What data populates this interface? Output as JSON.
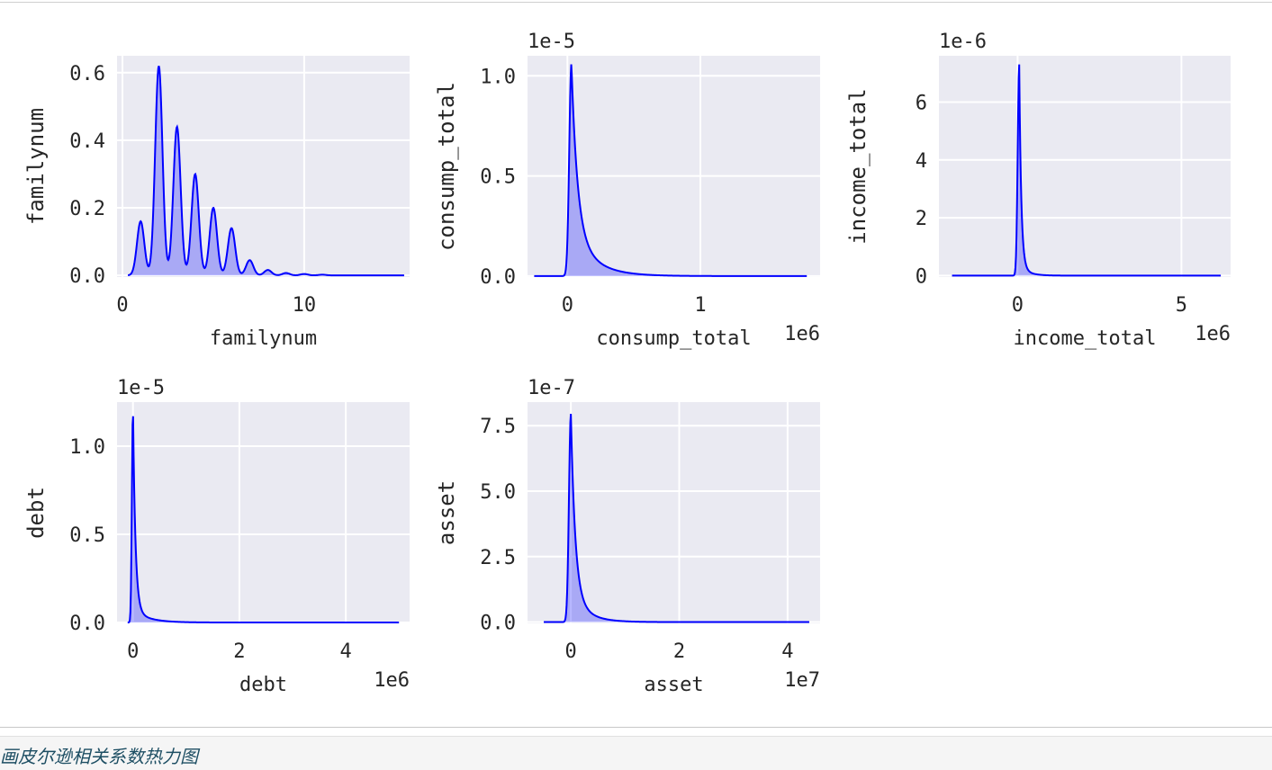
{
  "caption": "画皮尔逊相关系数热力图",
  "colors": {
    "panel_bg": "#eaeaf2",
    "grid": "#ffffff",
    "line": "#0000ff",
    "fill": "rgba(0,0,255,0.28)",
    "text": "#262626"
  },
  "chart_data": [
    {
      "type": "area",
      "xlabel": "familynum",
      "ylabel": "familynum",
      "x_multiplier": "",
      "y_multiplier": "",
      "xlim": [
        -0.3,
        15.8
      ],
      "ylim": [
        -0.005,
        0.65
      ],
      "xticks": [
        0,
        10
      ],
      "xtick_labels": [
        "0",
        "10"
      ],
      "yticks": [
        0,
        0.2,
        0.4,
        0.6
      ],
      "ytick_labels": [
        "0.0",
        "0.2",
        "0.4",
        "0.6"
      ],
      "grid": true,
      "kde": {
        "range": [
          0.3,
          15.5
        ],
        "bandwidth": 0.2,
        "components": [
          {
            "x": 1,
            "height": 0.16
          },
          {
            "x": 2,
            "height": 0.62
          },
          {
            "x": 3,
            "height": 0.44
          },
          {
            "x": 4,
            "height": 0.3
          },
          {
            "x": 5,
            "height": 0.2
          },
          {
            "x": 6,
            "height": 0.14
          },
          {
            "x": 7,
            "height": 0.045
          },
          {
            "x": 8,
            "height": 0.016
          },
          {
            "x": 9,
            "height": 0.007
          },
          {
            "x": 10,
            "height": 0.004
          },
          {
            "x": 11,
            "height": 0.002
          }
        ]
      }
    },
    {
      "type": "area",
      "xlabel": "consump_total",
      "ylabel": "consump_total",
      "x_multiplier": "1e6",
      "y_multiplier": "1e-5",
      "xlim": [
        -0.3,
        1.9
      ],
      "ylim": [
        -0.005,
        1.1
      ],
      "xticks": [
        0,
        1
      ],
      "xtick_labels": [
        "0",
        "1"
      ],
      "yticks": [
        0,
        0.5,
        1.0
      ],
      "ytick_labels": [
        "0.0",
        "0.5",
        "1.0"
      ],
      "grid": true,
      "kde": {
        "range": [
          -0.25,
          1.8
        ],
        "peak_x": 0.03,
        "peak_height": 1.06,
        "rise": 0.016,
        "fall_fast": 0.045,
        "fall_slow": 0.16,
        "tail_share": 0.22
      }
    },
    {
      "type": "area",
      "xlabel": "income_total",
      "ylabel": "income_total",
      "x_multiplier": "1e6",
      "y_multiplier": "1e-6",
      "xlim": [
        -2.4,
        6.5
      ],
      "ylim": [
        -0.05,
        7.6
      ],
      "xticks": [
        0,
        5
      ],
      "xtick_labels": [
        "0",
        "5"
      ],
      "yticks": [
        0,
        2,
        4,
        6
      ],
      "ytick_labels": [
        "0",
        "2",
        "4",
        "6"
      ],
      "grid": true,
      "kde": {
        "range": [
          -2.0,
          6.2
        ],
        "peak_x": 0.05,
        "peak_height": 7.3,
        "rise": 0.045,
        "fall_fast": 0.06,
        "fall_slow": 0.25,
        "tail_share": 0.05
      }
    },
    {
      "type": "area",
      "xlabel": "debt",
      "ylabel": "debt",
      "x_multiplier": "1e6",
      "y_multiplier": "1e-5",
      "xlim": [
        -0.3,
        5.2
      ],
      "ylim": [
        -0.005,
        1.25
      ],
      "xticks": [
        0,
        2,
        4
      ],
      "xtick_labels": [
        "0",
        "2",
        "4"
      ],
      "yticks": [
        0,
        0.5,
        1.0
      ],
      "ytick_labels": [
        "0.0",
        "0.5",
        "1.0"
      ],
      "grid": true,
      "kde": {
        "range": [
          -0.1,
          5.0
        ],
        "peak_x": 0.0,
        "peak_height": 1.22,
        "rise": 0.02,
        "fall_fast": 0.045,
        "fall_slow": 0.28,
        "tail_share": 0.06
      }
    },
    {
      "type": "area",
      "xlabel": "asset",
      "ylabel": "asset",
      "x_multiplier": "1e7",
      "y_multiplier": "1e-7",
      "xlim": [
        -0.8,
        4.6
      ],
      "ylim": [
        -0.05,
        8.4
      ],
      "xticks": [
        0,
        2,
        4
      ],
      "xtick_labels": [
        "0",
        "2",
        "4"
      ],
      "yticks": [
        0,
        2.5,
        5.0,
        7.5
      ],
      "ytick_labels": [
        "0.0",
        "2.5",
        "5.0",
        "7.5"
      ],
      "grid": true,
      "kde": {
        "range": [
          -0.5,
          4.4
        ],
        "peak_x": 0.0,
        "peak_height": 7.95,
        "rise": 0.035,
        "fall_fast": 0.08,
        "fall_slow": 0.28,
        "tail_share": 0.14
      }
    }
  ]
}
